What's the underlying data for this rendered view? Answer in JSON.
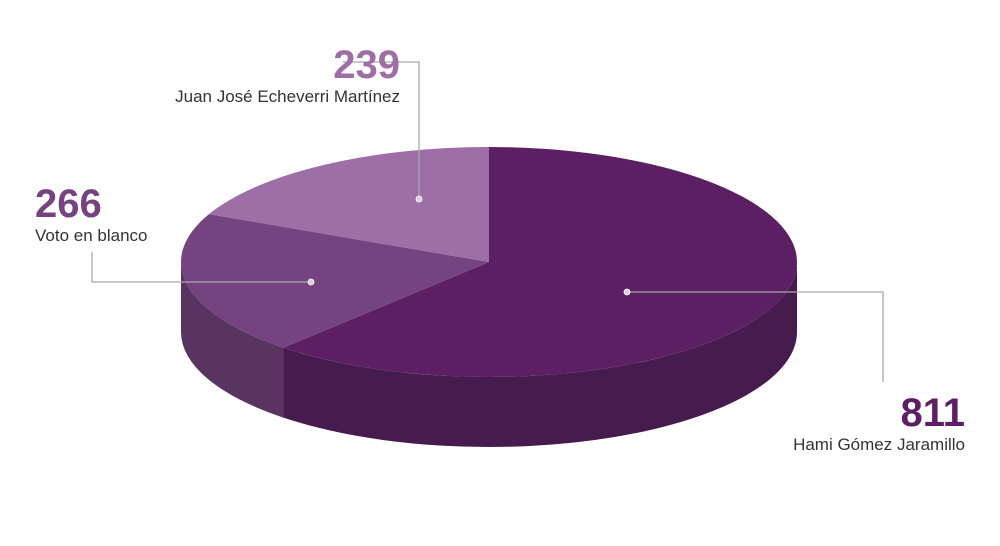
{
  "chart_data": {
    "type": "pie",
    "three_d": true,
    "legend": "none",
    "slices": [
      {
        "label": "Hami Gómez Jaramillo",
        "value": 811,
        "color": "#5c1f63",
        "side_color": "#461b4e"
      },
      {
        "label": "Voto en blanco",
        "value": 266,
        "color": "#764381",
        "side_color": "#5a3461"
      },
      {
        "label": "Juan José Echeverri Martínez",
        "value": 239,
        "color": "#9e6ea6",
        "side_color": "#7e5586"
      }
    ],
    "value_colors": [
      "#5c1f63",
      "#764381",
      "#9e6ea6"
    ]
  }
}
